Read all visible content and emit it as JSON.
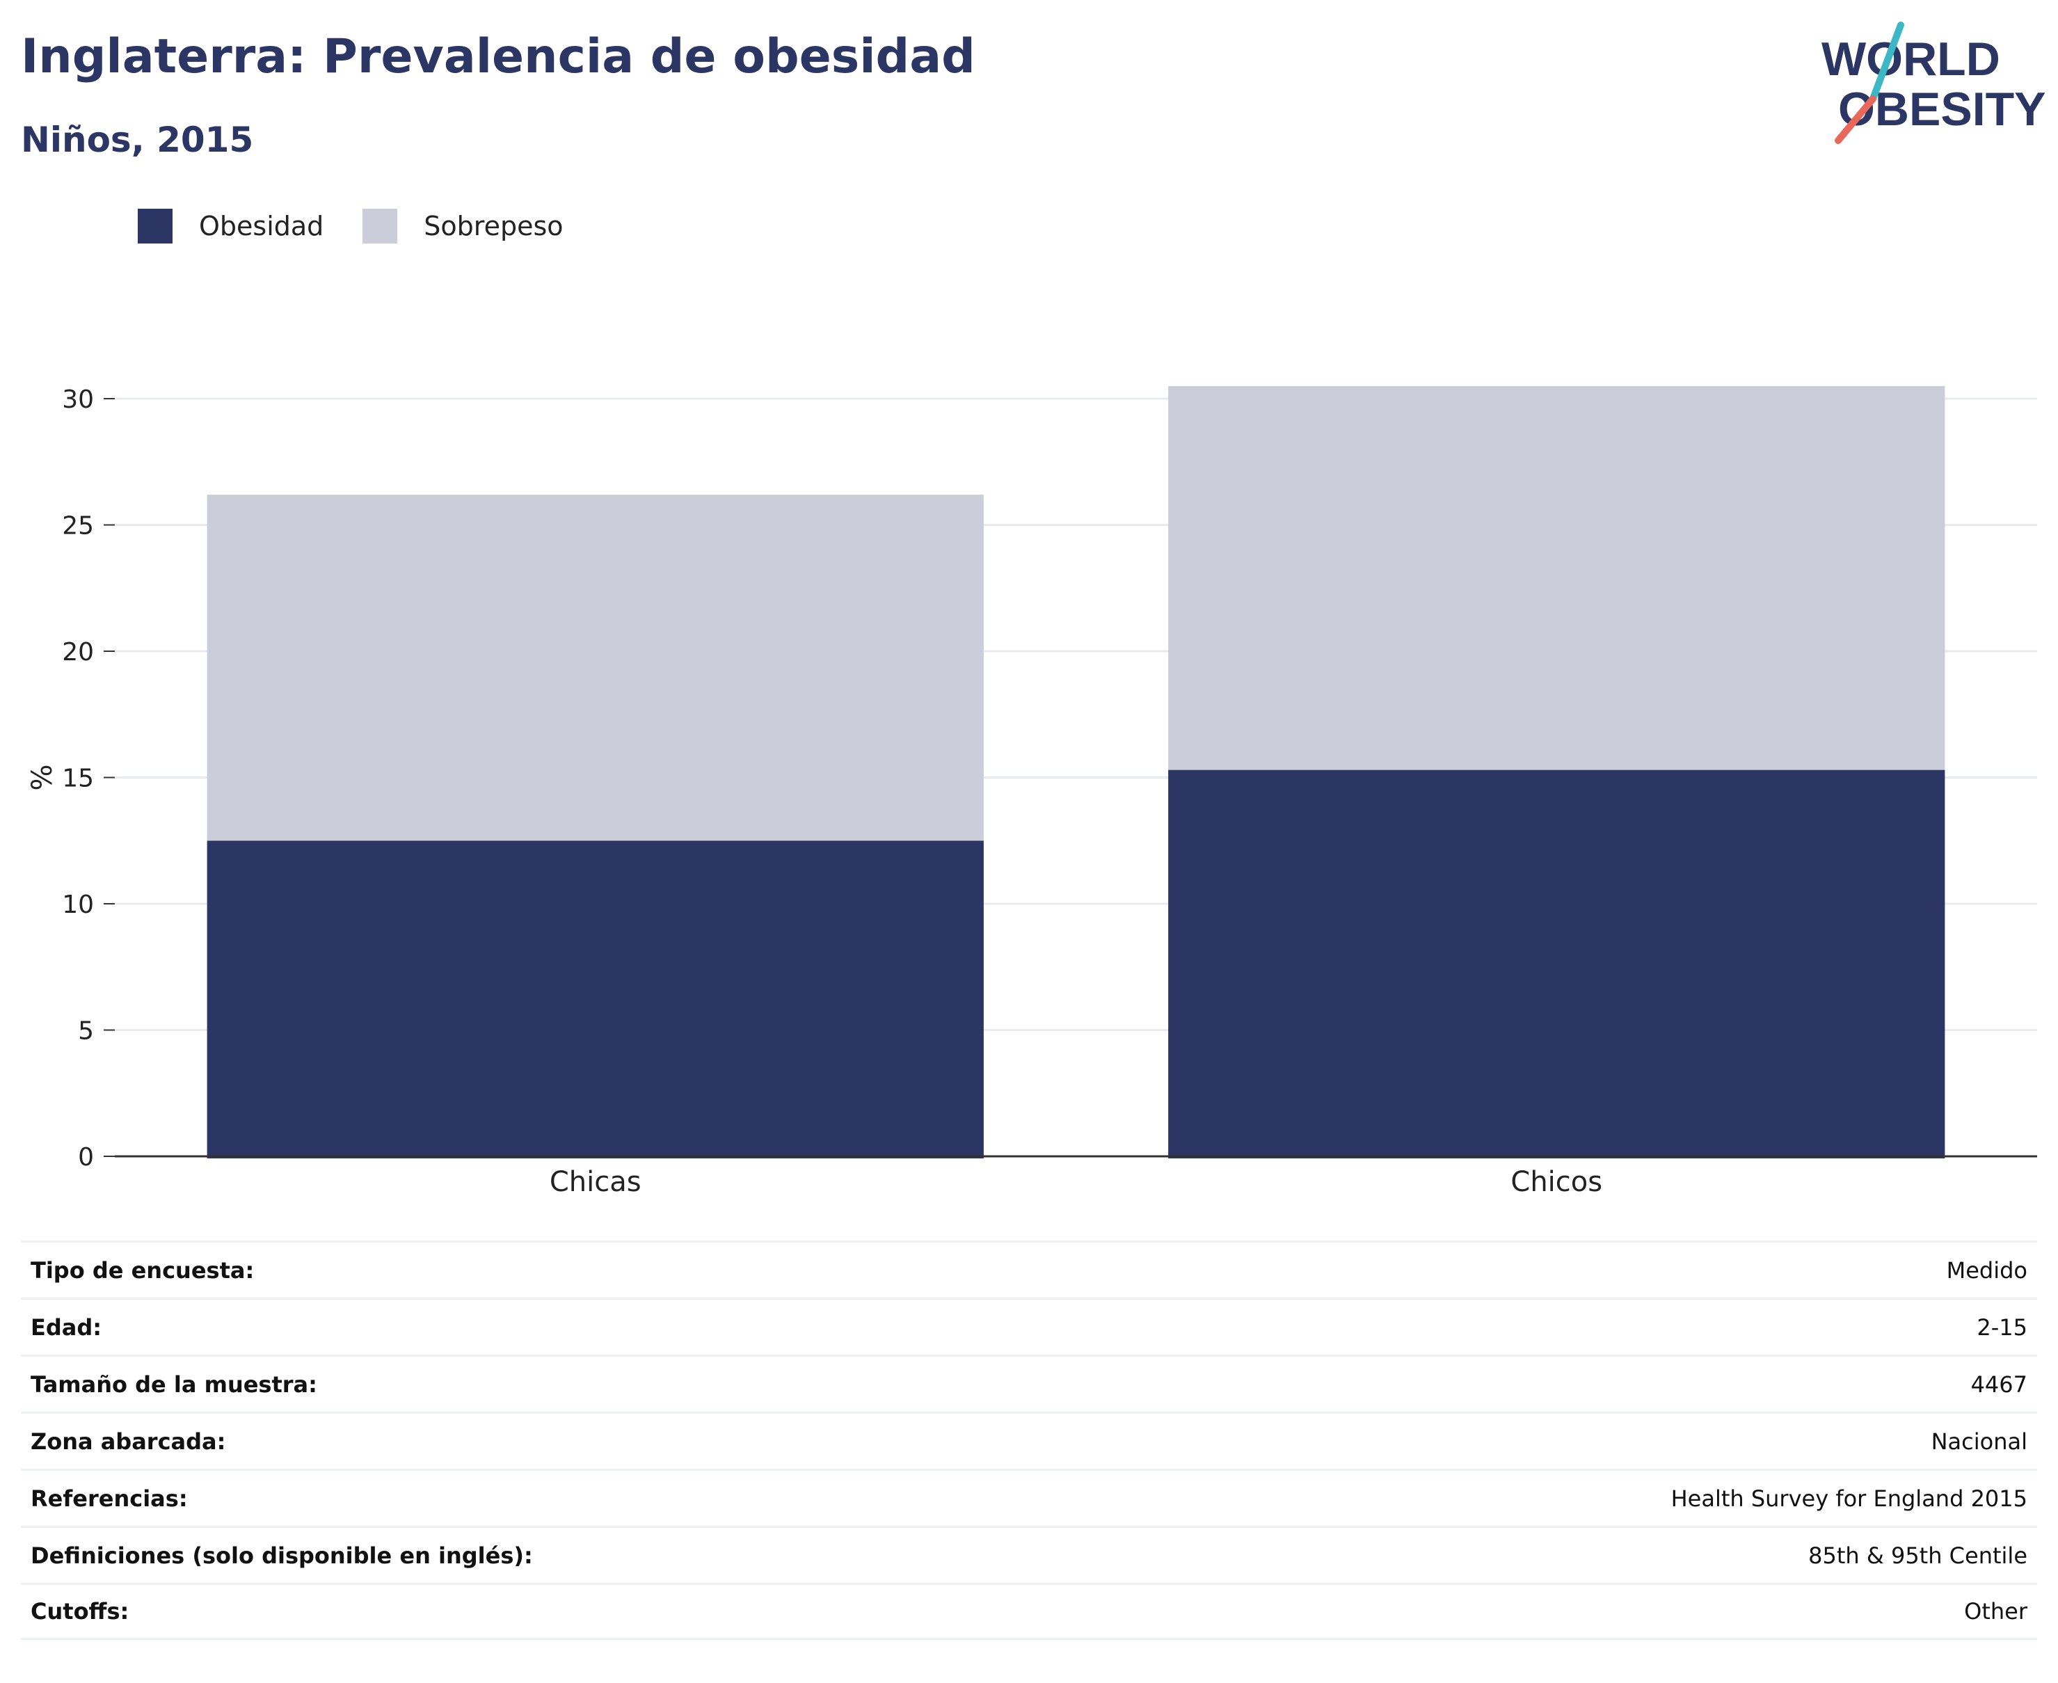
{
  "header": {
    "title": "Inglaterra: Prevalencia de obesidad",
    "subtitle": "Niños, 2015"
  },
  "logo": {
    "line1": "WORLD",
    "line2": "OBESITY",
    "accent_teal": "#3bb8c3",
    "accent_coral": "#e8685a"
  },
  "legend": [
    {
      "label": "Obesidad",
      "color": "#2b3664"
    },
    {
      "label": "Sobrepeso",
      "color": "#cbcdd8"
    }
  ],
  "chart_data": {
    "type": "bar",
    "stacked": true,
    "categories": [
      "Chicas",
      "Chicos"
    ],
    "series": [
      {
        "name": "Obesidad",
        "values": [
          12.5,
          15.3
        ],
        "color": "#2b3664"
      },
      {
        "name": "Sobrepeso",
        "values": [
          13.7,
          15.2
        ],
        "color": "#cbcdd8"
      }
    ],
    "ylabel": "%",
    "ylim": [
      0,
      30
    ],
    "yticks": [
      "0",
      "5",
      "10",
      "15",
      "20",
      "25",
      "30"
    ],
    "grid": true,
    "legend_position": "top-left"
  },
  "info": [
    {
      "label": "Tipo de encuesta:",
      "value": "Medido"
    },
    {
      "label": "Edad:",
      "value": "2-15"
    },
    {
      "label": "Tamaño de la muestra:",
      "value": "4467"
    },
    {
      "label": "Zona abarcada:",
      "value": "Nacional"
    },
    {
      "label": "Referencias:",
      "value": "Health Survey for England 2015"
    },
    {
      "label": "Definiciones (solo disponible en inglés):",
      "value": "85th & 95th Centile"
    },
    {
      "label": "Cutoffs:",
      "value": "Other"
    }
  ]
}
